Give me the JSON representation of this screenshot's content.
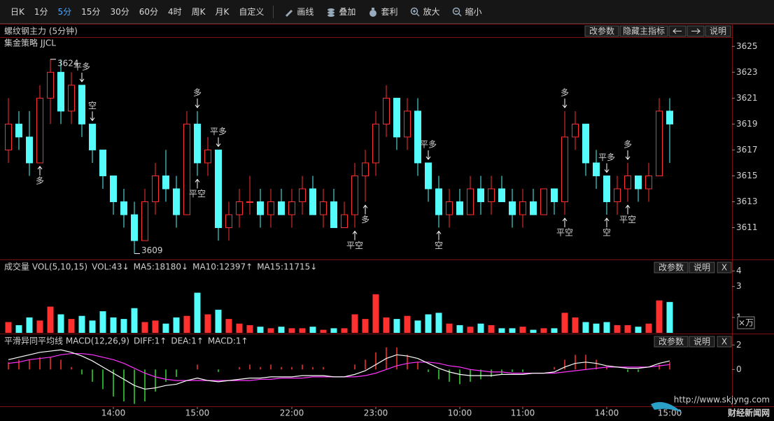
{
  "toolbar": {
    "periods": [
      "日K",
      "1分",
      "5分",
      "15分",
      "30分",
      "60分",
      "4时",
      "周K",
      "月K",
      "自定义"
    ],
    "active": 2,
    "tools": [
      "画线",
      "叠加",
      "套利",
      "放大",
      "缩小"
    ]
  },
  "watermark": {
    "text": "财经新闻网",
    "url": "http://www.skjyng.com"
  },
  "chart_data": [
    {
      "type": "candlestick",
      "title": "螺纹钢主力 (5分钟)",
      "subtitle": "集金策略 JJCL",
      "buttons": [
        "改参数",
        "隐藏主指标",
        "说明"
      ],
      "up_color": "#ff3030",
      "down_color": "#54fcfc",
      "categories": [
        null,
        null,
        null,
        null,
        null,
        null,
        null,
        null,
        null,
        null,
        "14:00",
        null,
        null,
        null,
        null,
        null,
        null,
        null,
        "15:00",
        null,
        null,
        null,
        null,
        null,
        null,
        null,
        null,
        "22:00",
        null,
        null,
        null,
        null,
        null,
        null,
        null,
        "23:00",
        null,
        null,
        null,
        null,
        null,
        null,
        null,
        "10:00",
        null,
        null,
        null,
        null,
        null,
        "11:00",
        null,
        null,
        null,
        null,
        null,
        null,
        null,
        "14:00",
        null,
        null,
        null,
        null,
        null,
        "15:00"
      ],
      "open": [
        3617,
        3619,
        3618,
        3616,
        3621,
        3623,
        3620,
        3622,
        3619,
        3617,
        3615,
        3613,
        3612,
        3610,
        3613,
        3615,
        3614,
        3612,
        3619,
        3616,
        3617,
        3611,
        3612,
        3613,
        3613,
        3612,
        3613,
        3612,
        3613,
        3614,
        3612,
        3613,
        3611,
        3612,
        3615,
        3616,
        3619,
        3621,
        3618,
        3620,
        3616,
        3614,
        3612,
        3613,
        3612,
        3614,
        3613,
        3614,
        3613,
        3612,
        3613,
        3612,
        3614,
        3613,
        3618,
        3619,
        3616,
        3615,
        3613,
        3614,
        3615,
        3614,
        3615,
        3620
      ],
      "high": [
        3621,
        3620,
        3620,
        3622,
        3624,
        3624,
        3623,
        3622,
        3619,
        3617,
        3615,
        3614,
        3613,
        3614,
        3616,
        3617,
        3615,
        3620,
        3620,
        3618,
        3617,
        3613,
        3614,
        3615,
        3614,
        3614,
        3614,
        3614,
        3615,
        3615,
        3614,
        3614,
        3613,
        3616,
        3617,
        3620,
        3622,
        3621,
        3621,
        3621,
        3616,
        3615,
        3614,
        3614,
        3615,
        3615,
        3615,
        3615,
        3614,
        3614,
        3614,
        3614,
        3614,
        3620,
        3620,
        3619,
        3617,
        3615,
        3615,
        3616,
        3615,
        3616,
        3621,
        3621
      ],
      "low": [
        3616,
        3617,
        3615,
        3616,
        3619,
        3619,
        3619,
        3618,
        3616,
        3614,
        3612,
        3611,
        3609,
        3610,
        3612,
        3613,
        3611,
        3612,
        3615,
        3615,
        3610,
        3610,
        3611,
        3612,
        3611,
        3611,
        3612,
        3611,
        3612,
        3612,
        3611,
        3611,
        3611,
        3611,
        3613,
        3615,
        3618,
        3617,
        3617,
        3615,
        3613,
        3611,
        3611,
        3612,
        3612,
        3612,
        3612,
        3613,
        3611,
        3611,
        3612,
        3612,
        3612,
        3612,
        3617,
        3615,
        3614,
        3612,
        3612,
        3613,
        3613,
        3613,
        3615,
        3616
      ],
      "close": [
        3619,
        3618,
        3616,
        3621,
        3623,
        3620,
        3622,
        3619,
        3617,
        3615,
        3613,
        3612,
        3610,
        3613,
        3615,
        3614,
        3612,
        3619,
        3616,
        3617,
        3611,
        3612,
        3613,
        3613,
        3612,
        3613,
        3612,
        3613,
        3614,
        3612,
        3613,
        3611,
        3612,
        3615,
        3616,
        3619,
        3621,
        3618,
        3620,
        3616,
        3614,
        3612,
        3613,
        3612,
        3614,
        3613,
        3614,
        3613,
        3612,
        3613,
        3612,
        3614,
        3613,
        3618,
        3619,
        3616,
        3615,
        3613,
        3614,
        3615,
        3614,
        3615,
        3620,
        3619
      ],
      "ylim": [
        3608.6,
        3625.5
      ],
      "yticks": [
        3611,
        3613,
        3615,
        3617,
        3619,
        3621,
        3623,
        3625
      ],
      "extremes": [
        {
          "value": 3624,
          "index": 4
        },
        {
          "value": 3609,
          "index": 12
        }
      ],
      "signals": [
        {
          "text": "多",
          "index": 3,
          "pos": "below",
          "color": "#ff3030"
        },
        {
          "text": "平多",
          "index": 7,
          "pos": "above",
          "color": "#33ff33"
        },
        {
          "text": "空",
          "index": 8,
          "pos": "above",
          "color": "#33ff33"
        },
        {
          "text": "多",
          "index": 18,
          "pos": "above",
          "color": "#ff3030"
        },
        {
          "text": "平空",
          "index": 18,
          "pos": "below",
          "color": "#ff3030"
        },
        {
          "text": "平多",
          "index": 20,
          "pos": "above",
          "color": "#33ff33"
        },
        {
          "text": "平空",
          "index": 33,
          "pos": "below",
          "color": "#ff3030"
        },
        {
          "text": "多",
          "index": 34,
          "pos": "below",
          "color": "#ff3030"
        },
        {
          "text": "平多",
          "index": 40,
          "pos": "above",
          "color": "#33ff33"
        },
        {
          "text": "空",
          "index": 41,
          "pos": "below",
          "color": "#33ff33"
        },
        {
          "text": "多",
          "index": 53,
          "pos": "above",
          "color": "#ff3030"
        },
        {
          "text": "平空",
          "index": 53,
          "pos": "below",
          "color": "#ff3030"
        },
        {
          "text": "平多",
          "index": 57,
          "pos": "above",
          "color": "#33ff33"
        },
        {
          "text": "空",
          "index": 57,
          "pos": "below",
          "color": "#33ff33"
        },
        {
          "text": "多",
          "index": 59,
          "pos": "above",
          "color": "#ff3030"
        },
        {
          "text": "平空",
          "index": 59,
          "pos": "below",
          "color": "#ff3030"
        }
      ]
    },
    {
      "type": "bar",
      "unit": "×万",
      "legend": [
        {
          "text": "成交量 VOL(5,10,15)",
          "color": "#ffffff"
        },
        {
          "text": "VOL:43↓",
          "color": "#ffffff"
        },
        {
          "text": "MA5:18180↓",
          "color": "#ff33ff"
        },
        {
          "text": "MA10:12397↑",
          "color": "#33ff33"
        },
        {
          "text": "MA15:11715↓",
          "color": "#3366ff"
        }
      ],
      "buttons": [
        "改参数",
        "说明",
        "X"
      ],
      "values": [
        0.7,
        0.5,
        1.0,
        0.8,
        1.7,
        1.2,
        0.9,
        1.1,
        0.8,
        1.4,
        1.0,
        0.9,
        1.6,
        0.7,
        0.8,
        0.6,
        1.0,
        1.1,
        2.6,
        1.2,
        1.5,
        0.9,
        0.6,
        0.5,
        0.4,
        0.3,
        0.4,
        0.3,
        0.3,
        0.4,
        0.2,
        0.3,
        0.3,
        1.2,
        0.9,
        2.5,
        1.0,
        0.9,
        1.1,
        0.8,
        1.2,
        1.3,
        0.6,
        0.5,
        0.4,
        0.6,
        0.5,
        0.3,
        0.3,
        0.4,
        0.2,
        0.3,
        0.3,
        1.3,
        1.0,
        0.7,
        0.6,
        0.7,
        0.5,
        0.5,
        0.4,
        0.6,
        2.1,
        2.0
      ],
      "ylim": [
        0,
        4.3
      ],
      "yticks": [
        1,
        3,
        4
      ]
    },
    {
      "type": "macd",
      "legend": [
        {
          "text": "平滑异同平均线 MACD(12,26,9)",
          "color": "#ffffff"
        },
        {
          "text": "DIFF:1↑",
          "color": "#ffffff"
        },
        {
          "text": "DEA:1↑",
          "color": "#ff33ff"
        },
        {
          "text": "MACD:1↑",
          "color": "#33ff33"
        }
      ],
      "buttons": [
        "改参数",
        "说明",
        "X"
      ],
      "diff_color": "#ffffff",
      "dea_color": "#ff33ff",
      "pos_color": "#ff3030",
      "neg_color": "#33dd33",
      "diff": [
        0.8,
        1.0,
        1.2,
        1.4,
        1.5,
        1.6,
        1.4,
        1.1,
        0.7,
        0.2,
        -0.3,
        -0.8,
        -1.3,
        -1.6,
        -1.5,
        -1.3,
        -1.2,
        -0.9,
        -0.7,
        -0.9,
        -1.0,
        -0.9,
        -0.8,
        -0.7,
        -0.7,
        -0.6,
        -0.6,
        -0.6,
        -0.5,
        -0.5,
        -0.5,
        -0.6,
        -0.6,
        -0.4,
        -0.1,
        0.4,
        0.9,
        1.2,
        1.1,
        0.9,
        0.5,
        0.1,
        -0.2,
        -0.4,
        -0.5,
        -0.5,
        -0.5,
        -0.4,
        -0.4,
        -0.4,
        -0.3,
        -0.3,
        -0.2,
        0.2,
        0.5,
        0.6,
        0.5,
        0.3,
        0.2,
        0.1,
        0.1,
        0.2,
        0.5,
        0.7
      ],
      "dea": [
        0.5,
        0.6,
        0.8,
        0.9,
        1.0,
        1.2,
        1.3,
        1.3,
        1.2,
        1.0,
        0.8,
        0.5,
        0.1,
        -0.3,
        -0.6,
        -0.8,
        -0.9,
        -0.9,
        -0.9,
        -0.9,
        -0.9,
        -0.9,
        -0.9,
        -0.9,
        -0.8,
        -0.8,
        -0.7,
        -0.7,
        -0.7,
        -0.6,
        -0.6,
        -0.6,
        -0.6,
        -0.6,
        -0.5,
        -0.3,
        0.0,
        0.3,
        0.5,
        0.6,
        0.6,
        0.5,
        0.3,
        0.2,
        0.0,
        -0.1,
        -0.2,
        -0.2,
        -0.3,
        -0.3,
        -0.3,
        -0.3,
        -0.3,
        -0.2,
        -0.1,
        0.0,
        0.1,
        0.2,
        0.2,
        0.2,
        0.2,
        0.2,
        0.3,
        0.4
      ],
      "macd": [
        0.6,
        0.8,
        0.8,
        1.0,
        1.0,
        0.8,
        0.2,
        -0.4,
        -1.0,
        -1.6,
        -2.2,
        -2.6,
        -2.8,
        -2.6,
        -1.8,
        -1.0,
        -0.6,
        0.0,
        0.4,
        0.0,
        -0.2,
        0.0,
        0.2,
        0.4,
        0.2,
        0.4,
        0.2,
        0.2,
        0.4,
        0.2,
        0.2,
        0.0,
        0.0,
        0.4,
        0.8,
        1.4,
        1.8,
        1.8,
        1.2,
        0.6,
        -0.2,
        -0.8,
        -1.0,
        -1.2,
        -1.0,
        -0.8,
        -0.6,
        -0.4,
        -0.2,
        -0.2,
        0.0,
        0.0,
        0.2,
        0.8,
        1.2,
        1.2,
        0.8,
        0.2,
        0.0,
        -0.2,
        -0.2,
        0.0,
        0.4,
        0.6
      ],
      "ylim": [
        -3,
        2.3
      ],
      "yticks": [
        0,
        2
      ]
    }
  ]
}
